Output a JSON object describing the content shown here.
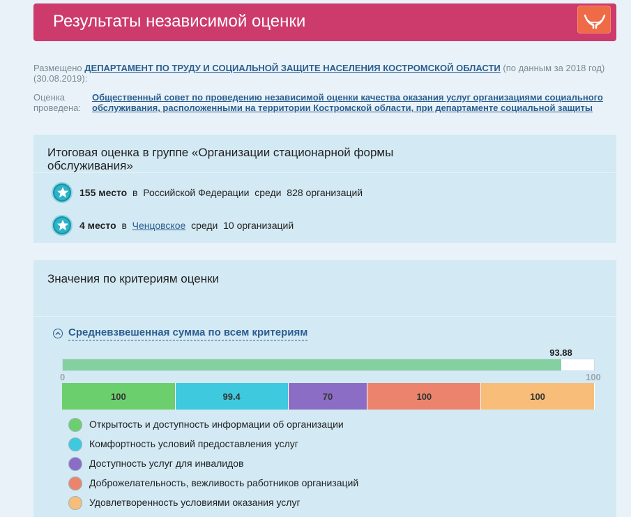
{
  "header": {
    "title": "Результаты независимой оценки",
    "icon": "hands-icon"
  },
  "placed": {
    "label": "Размещено",
    "org": "ДЕПАРТАМЕНТ ПО ТРУДУ И СОЦИАЛЬНОЙ ЗАЩИТЕ НАСЕЛЕНИЯ КОСТРОМСКОЙ ОБЛАСТИ",
    "note": "(по данным за 2018 год)",
    "date": "(30.08.2019):"
  },
  "evaluated": {
    "label": "Оценка проведена:",
    "org": "Общественный совет по проведению независимой оценки качества оказания услуг организациями социального обслуживания, расположенными на территории Костромской области, при департаменте социальной защиты"
  },
  "summary": {
    "title": "Итоговая оценка в группе «Организации стационарной формы обслуживания»",
    "ranks": [
      {
        "place": "155 место",
        "in": "в",
        "region": "Российской Федерации",
        "among": "среди",
        "count": "828 организаций",
        "link": false
      },
      {
        "place": "4 место",
        "in": "в",
        "region": "Ченцовское",
        "among": "среди",
        "count": "10 организаций",
        "link": true
      }
    ]
  },
  "criteria": {
    "title": "Значения по критериям оценки",
    "accordion_label": "Средневзвешенная сумма по всем критериям",
    "total": "93.88",
    "total_value": 93.88,
    "scale_min": "0",
    "scale_max": "100",
    "segments": [
      {
        "value": "100",
        "weight": 1.0,
        "color": "#6ccf6e"
      },
      {
        "value": "99.4",
        "weight": 0.994,
        "color": "#3ec9de"
      },
      {
        "value": "70",
        "weight": 0.7,
        "color": "#8c6dc6"
      },
      {
        "value": "100",
        "weight": 1.0,
        "color": "#ec846d"
      },
      {
        "value": "100",
        "weight": 1.0,
        "color": "#f8bd78"
      }
    ],
    "legend": [
      {
        "label": "Открытость и доступность информации об организации",
        "color": "#6ccf6e"
      },
      {
        "label": "Комфортность условий предоставления услуг",
        "color": "#3ec9de"
      },
      {
        "label": "Доступность услуг для инвалидов",
        "color": "#8c6dc6"
      },
      {
        "label": "Доброжелательность, вежливость работников организаций",
        "color": "#ec846d"
      },
      {
        "label": "Удовлетворенность условиями оказания услуг",
        "color": "#f8bd78"
      }
    ]
  }
}
